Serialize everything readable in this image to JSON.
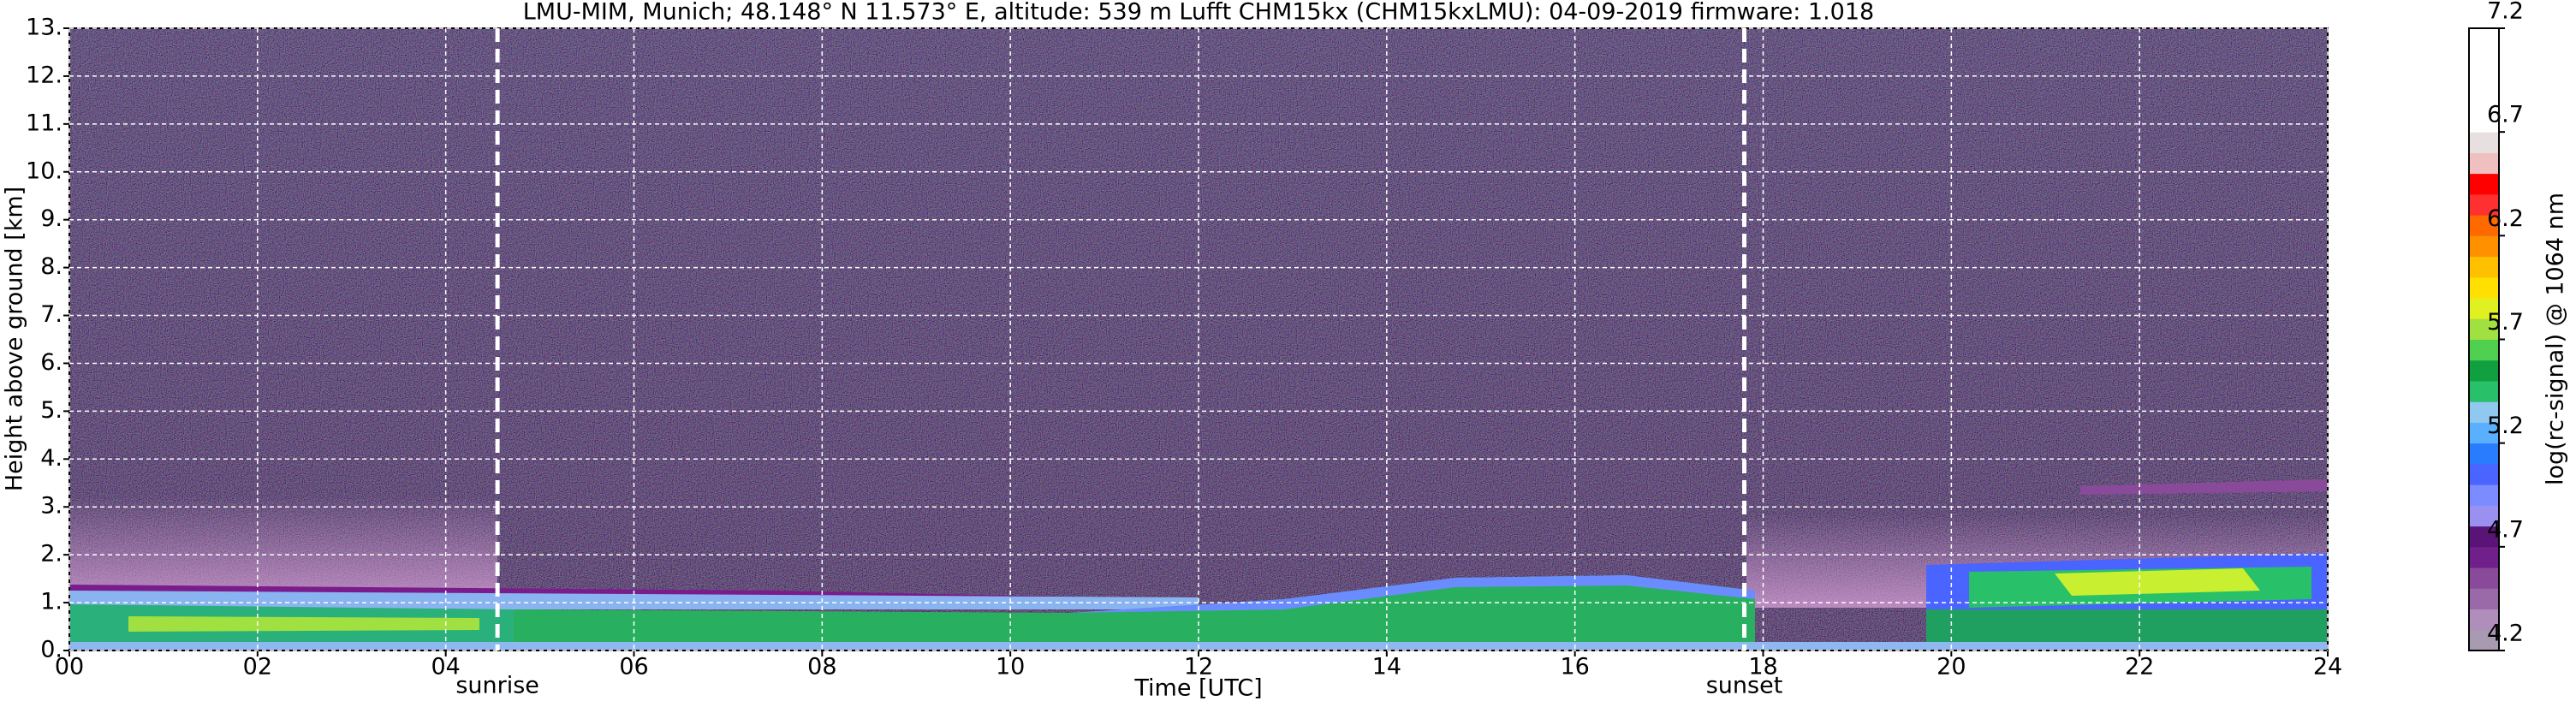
{
  "chart_data": {
    "type": "heatmap",
    "title": "LMU-MIM, Munich; 48.148° N 11.573° E, altitude: 539 m    Lufft CHM15kx (CHM15kxLMU): 04-09-2019    firmware: 1.018",
    "xlabel": "Time [UTC]",
    "ylabel": "Height above ground [km]",
    "xlim": [
      0,
      24
    ],
    "xticks": [
      {
        "value": 0,
        "label": "00"
      },
      {
        "value": 2,
        "label": "02"
      },
      {
        "value": 4,
        "label": "04"
      },
      {
        "value": 6,
        "label": "06"
      },
      {
        "value": 8,
        "label": "08"
      },
      10,
      12,
      14,
      16,
      18,
      20,
      22,
      24
    ],
    "ylim": [
      0,
      13
    ],
    "yticks": [
      {
        "value": 0,
        "label": "0."
      },
      {
        "value": 1,
        "label": "1."
      },
      {
        "value": 2,
        "label": "2."
      },
      {
        "value": 3,
        "label": "3."
      },
      {
        "value": 4,
        "label": "4."
      },
      {
        "value": 5,
        "label": "5."
      },
      {
        "value": 6,
        "label": "6."
      },
      {
        "value": 7,
        "label": "7."
      },
      {
        "value": 8,
        "label": "8."
      },
      {
        "value": 9,
        "label": "9."
      },
      {
        "value": 10,
        "label": "10."
      },
      {
        "value": 11,
        "label": "11."
      },
      {
        "value": 12,
        "label": "12."
      },
      {
        "value": 13,
        "label": "13."
      }
    ],
    "grid": true,
    "markers": [
      {
        "x": 4.55,
        "label": "sunrise"
      },
      {
        "x": 17.8,
        "label": "sunset"
      }
    ],
    "colorbar": {
      "label": "log(rc-signal) @ 1064 nm",
      "lim": [
        4.2,
        7.2
      ],
      "ticks": [
        4.2,
        4.7,
        5.2,
        5.7,
        6.2,
        6.7,
        7.2
      ],
      "colors": [
        "#a89ab0",
        "#b08ebc",
        "#9a6aa8",
        "#8a4a9a",
        "#70208a",
        "#5a1478",
        "#9a90f0",
        "#7a8cff",
        "#4a64ff",
        "#2a7cff",
        "#5ab0ff",
        "#90c8f0",
        "#28c068",
        "#10a040",
        "#50d050",
        "#a0e040",
        "#e0f020",
        "#ffe000",
        "#ffc000",
        "#ff9000",
        "#ff6a00",
        "#ff3030",
        "#ff0000",
        "#f0c0c0",
        "#e8e0e0",
        "#ffffff",
        "#ffffff",
        "#ffffff",
        "#ffffff",
        "#ffffff"
      ]
    }
  }
}
